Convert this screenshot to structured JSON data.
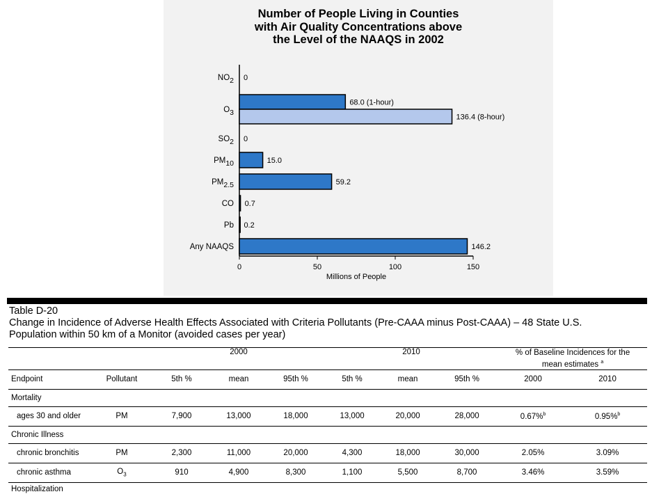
{
  "chart": {
    "title_lines": [
      "Number of People Living in Counties",
      "with Air Quality Concentrations above",
      "the Level of the NAAQS in 2002"
    ]
  },
  "chart_data": {
    "type": "bar",
    "orientation": "horizontal",
    "title": "Number of People Living in Counties with Air Quality Concentrations above the Level of the NAAQS in 2002",
    "xlabel": "Millions of People",
    "xlim": [
      0,
      150
    ],
    "xticks": [
      0,
      50,
      100,
      150
    ],
    "categories": [
      {
        "main": "NO",
        "sub": "2"
      },
      {
        "main": "O",
        "sub": "3"
      },
      {
        "main": "SO",
        "sub": "2"
      },
      {
        "main": "PM",
        "sub": "10"
      },
      {
        "main": "PM",
        "sub": "2.5"
      },
      {
        "main": "CO",
        "sub": ""
      },
      {
        "main": "Pb",
        "sub": ""
      },
      {
        "main": "Any NAAQS",
        "sub": ""
      }
    ],
    "bars": [
      {
        "category_index": 0,
        "value": 0,
        "label": "0",
        "color": "#2e78c8"
      },
      {
        "category_index": 1,
        "value": 68.0,
        "label": "68.0 (1-hour)",
        "color": "#2e78c8"
      },
      {
        "category_index": 1,
        "value": 136.4,
        "label": "136.4 (8-hour)",
        "color": "#b4c8ec"
      },
      {
        "category_index": 2,
        "value": 0,
        "label": "0",
        "color": "#2e78c8"
      },
      {
        "category_index": 3,
        "value": 15.0,
        "label": "15.0",
        "color": "#2e78c8"
      },
      {
        "category_index": 4,
        "value": 59.2,
        "label": "59.2",
        "color": "#2e78c8"
      },
      {
        "category_index": 5,
        "value": 0.7,
        "label": "0.7",
        "color": "#2e78c8"
      },
      {
        "category_index": 6,
        "value": 0.2,
        "label": "0.2",
        "color": "#2e78c8"
      },
      {
        "category_index": 7,
        "value": 146.2,
        "label": "146.2",
        "color": "#2e78c8"
      }
    ],
    "grid": false
  },
  "table": {
    "caption_lines": [
      "Table D-20",
      "Change in Incidence of Adverse Health Effects Associated with Criteria Pollutants (Pre-CAAA minus Post-CAAA) – 48 State U.S.",
      "Population within 50 km of a Monitor (avoided cases per year)"
    ],
    "group_headers": {
      "year_2000": "2000",
      "year_2010": "2010",
      "baseline": "% of Baseline Incidences for the",
      "baseline_line2": "mean estimates",
      "baseline_note": "a"
    },
    "columns": {
      "endpoint": "Endpoint",
      "pollutant": "Pollutant",
      "p5": "5th %",
      "mean": "mean",
      "p95": "95th %",
      "p5_b": "5th %",
      "mean_b": "mean",
      "p95_b": "95th %",
      "y2000": "2000",
      "y2010": "2010"
    },
    "categories": {
      "mortality": "Mortality",
      "chronic": "Chronic Illness",
      "hosp": "Hospitalization"
    },
    "rows": [
      {
        "endpoint": "ages 30 and older",
        "pollutant": "PM",
        "pollutant_sub": "",
        "v": [
          "7,900",
          "13,000",
          "18,000",
          "13,000",
          "20,000",
          "28,000",
          "0.67%",
          "0.95%"
        ],
        "note": "b"
      },
      {
        "endpoint": "chronic bronchitis",
        "pollutant": "PM",
        "pollutant_sub": "",
        "v": [
          "2,300",
          "11,000",
          "20,000",
          "4,300",
          "18,000",
          "30,000",
          "2.05%",
          "3.09%"
        ],
        "note": ""
      },
      {
        "endpoint": "chronic asthma",
        "pollutant": "O",
        "pollutant_sub": "3",
        "v": [
          "910",
          "4,900",
          "8,300",
          "1,100",
          "5,500",
          "8,700",
          "3.46%",
          "3.59%"
        ],
        "note": ""
      }
    ]
  }
}
